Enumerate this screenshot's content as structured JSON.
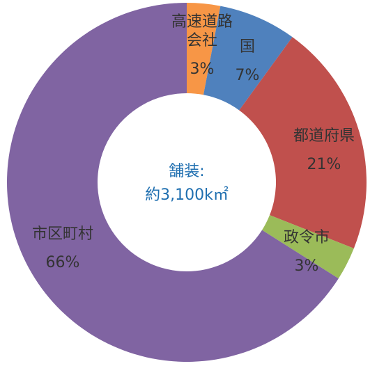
{
  "chart_data": {
    "type": "donut",
    "center_text": [
      "舗装:",
      "約3,100k㎡"
    ],
    "categories": [
      "高速道路会社",
      "国",
      "都道府県",
      "政令市",
      "市区町村"
    ],
    "values": [
      3,
      7,
      21,
      3,
      66
    ],
    "value_labels": [
      "3%",
      "7%",
      "21%",
      "3%",
      "66%"
    ],
    "colors": [
      "#f79646",
      "#4f81bd",
      "#c0504d",
      "#9bbb59",
      "#8064a2"
    ]
  }
}
